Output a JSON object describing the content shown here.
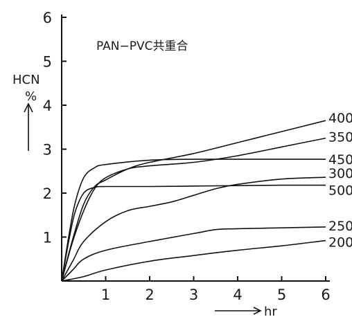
{
  "chart_data": {
    "type": "line",
    "title": "PAN−PVC共重合",
    "ylabel_top": "HCN",
    "ylabel_bottom": "%",
    "xlabel": "hr",
    "xlim": [
      0,
      6
    ],
    "ylim": [
      0,
      6
    ],
    "x_ticks": [
      "1",
      "2",
      "3",
      "4",
      "5",
      "6"
    ],
    "y_ticks": [
      "1",
      "2",
      "3",
      "4",
      "5",
      "6"
    ],
    "grid": false,
    "series": [
      {
        "name": "400",
        "points": [
          [
            0,
            0
          ],
          [
            0.25,
            0.95
          ],
          [
            0.5,
            1.75
          ],
          [
            0.75,
            2.15
          ],
          [
            1,
            2.3
          ],
          [
            1.5,
            2.55
          ],
          [
            2,
            2.7
          ],
          [
            3,
            2.9
          ],
          [
            4,
            3.15
          ],
          [
            5,
            3.4
          ],
          [
            6,
            3.65
          ]
        ]
      },
      {
        "name": "350",
        "points": [
          [
            0,
            0
          ],
          [
            0.25,
            0.9
          ],
          [
            0.5,
            1.6
          ],
          [
            0.75,
            2.1
          ],
          [
            1,
            2.35
          ],
          [
            1.5,
            2.55
          ],
          [
            2,
            2.62
          ],
          [
            3,
            2.7
          ],
          [
            4,
            2.85
          ],
          [
            5,
            3.05
          ],
          [
            6,
            3.25
          ]
        ]
      },
      {
        "name": "450",
        "points": [
          [
            0,
            0
          ],
          [
            0.15,
            0.95
          ],
          [
            0.3,
            1.75
          ],
          [
            0.5,
            2.35
          ],
          [
            0.75,
            2.58
          ],
          [
            1,
            2.65
          ],
          [
            2,
            2.75
          ],
          [
            3,
            2.77
          ],
          [
            4,
            2.77
          ],
          [
            5,
            2.77
          ],
          [
            6,
            2.77
          ]
        ]
      },
      {
        "name": "300",
        "points": [
          [
            0,
            0
          ],
          [
            0.25,
            0.45
          ],
          [
            0.5,
            0.9
          ],
          [
            1,
            1.35
          ],
          [
            1.5,
            1.6
          ],
          [
            2,
            1.7
          ],
          [
            2.5,
            1.8
          ],
          [
            3,
            1.95
          ],
          [
            3.5,
            2.1
          ],
          [
            4,
            2.2
          ],
          [
            5,
            2.32
          ],
          [
            6,
            2.36
          ]
        ]
      },
      {
        "name": "500",
        "points": [
          [
            0,
            0
          ],
          [
            0.15,
            0.85
          ],
          [
            0.3,
            1.55
          ],
          [
            0.5,
            2.0
          ],
          [
            0.75,
            2.13
          ],
          [
            1,
            2.15
          ],
          [
            2,
            2.15
          ],
          [
            3,
            2.16
          ],
          [
            4,
            2.17
          ],
          [
            5,
            2.18
          ],
          [
            6,
            2.18
          ]
        ]
      },
      {
        "name": "250",
        "points": [
          [
            0,
            0
          ],
          [
            0.25,
            0.25
          ],
          [
            0.5,
            0.5
          ],
          [
            1,
            0.7
          ],
          [
            2,
            0.9
          ],
          [
            3,
            1.08
          ],
          [
            3.5,
            1.17
          ],
          [
            4,
            1.19
          ],
          [
            5,
            1.21
          ],
          [
            6,
            1.23
          ]
        ]
      },
      {
        "name": "200",
        "points": [
          [
            0,
            0
          ],
          [
            0.5,
            0.1
          ],
          [
            1,
            0.25
          ],
          [
            2,
            0.45
          ],
          [
            3,
            0.58
          ],
          [
            4,
            0.7
          ],
          [
            5,
            0.8
          ],
          [
            6,
            0.92
          ]
        ]
      }
    ]
  }
}
